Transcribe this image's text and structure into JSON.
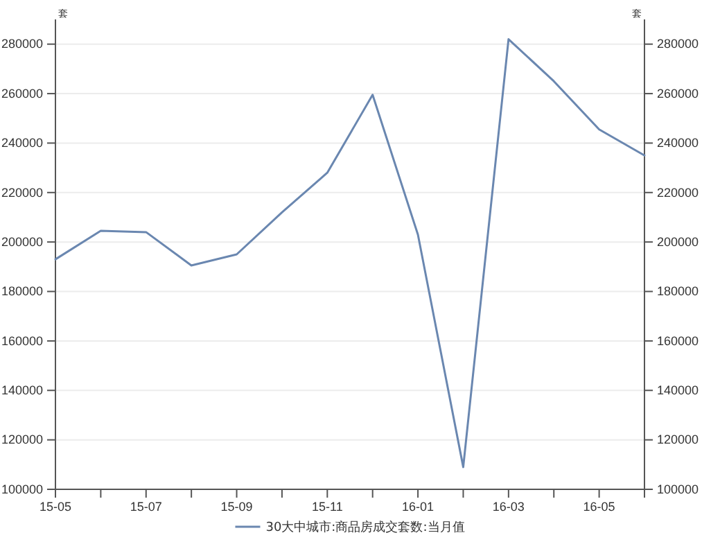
{
  "chart_data": {
    "type": "line",
    "ylabel": "套",
    "y2label": "套",
    "categories": [
      "15-05",
      null,
      "15-07",
      null,
      "15-09",
      null,
      "15-11",
      null,
      "16-01",
      null,
      "16-03",
      null,
      "16-05",
      null
    ],
    "series": [
      {
        "name": "30大中城市:商品房成交套数:当月值",
        "color": "#6a87b0",
        "values": [
          193000,
          204500,
          204000,
          190500,
          195000,
          212000,
          228000,
          259500,
          203000,
          109000,
          282000,
          265000,
          245500,
          235000
        ]
      }
    ],
    "ylim": [
      100000,
      290000
    ],
    "yticks": [
      100000,
      120000,
      140000,
      160000,
      180000,
      200000,
      220000,
      240000,
      260000,
      280000
    ],
    "y2lim": [
      100000,
      290000
    ],
    "y2ticks": [
      100000,
      120000,
      140000,
      160000,
      180000,
      200000,
      220000,
      240000,
      260000,
      280000
    ],
    "grid": "y",
    "legend": "bottom",
    "marker": "none",
    "line_style": "solid"
  }
}
